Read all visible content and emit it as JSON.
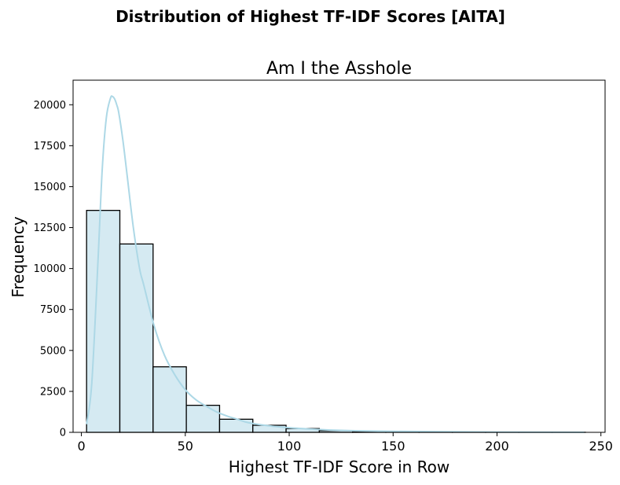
{
  "chart_data": {
    "type": "bar",
    "suptitle": "Distribution of Highest TF-IDF Scores [AITA]",
    "title": "Am I the Asshole",
    "xlabel": "Highest TF-IDF Score in Row",
    "ylabel": "Frequency",
    "xlim": [
      -4,
      252
    ],
    "ylim": [
      0,
      21500
    ],
    "xticks": [
      0,
      50,
      100,
      150,
      200,
      250
    ],
    "yticks": [
      0,
      2500,
      5000,
      7500,
      10000,
      12500,
      15000,
      17500,
      20000
    ],
    "bins": [
      {
        "x0": 2.5,
        "x1": 18.5,
        "count": 13550
      },
      {
        "x0": 18.5,
        "x1": 34.5,
        "count": 11500
      },
      {
        "x0": 34.5,
        "x1": 50.5,
        "count": 4000
      },
      {
        "x0": 50.5,
        "x1": 66.5,
        "count": 1650
      },
      {
        "x0": 66.5,
        "x1": 82.5,
        "count": 800
      },
      {
        "x0": 82.5,
        "x1": 98.5,
        "count": 430
      },
      {
        "x0": 98.5,
        "x1": 114.5,
        "count": 230
      },
      {
        "x0": 114.5,
        "x1": 130.5,
        "count": 100
      },
      {
        "x0": 130.5,
        "x1": 146.5,
        "count": 55
      },
      {
        "x0": 146.5,
        "x1": 162.5,
        "count": 30
      },
      {
        "x0": 162.5,
        "x1": 178.5,
        "count": 15
      },
      {
        "x0": 178.5,
        "x1": 194.5,
        "count": 10
      },
      {
        "x0": 194.5,
        "x1": 210.5,
        "count": 6
      },
      {
        "x0": 210.5,
        "x1": 226.5,
        "count": 4
      },
      {
        "x0": 226.5,
        "x1": 242.5,
        "count": 3
      }
    ],
    "kde": {
      "x": [
        2.5,
        5,
        8,
        10,
        12,
        14,
        15,
        16,
        17,
        18,
        20,
        22,
        25,
        28,
        30,
        35,
        40,
        45,
        50,
        55,
        60,
        65,
        70,
        75,
        80,
        90,
        100,
        110,
        120,
        130,
        140,
        150,
        170,
        200,
        242
      ],
      "y": [
        500,
        3000,
        10500,
        16000,
        19200,
        20400,
        20500,
        20350,
        20000,
        19500,
        17800,
        15700,
        12500,
        10000,
        9000,
        6500,
        4700,
        3500,
        2600,
        2000,
        1600,
        1250,
        1000,
        800,
        600,
        400,
        280,
        200,
        140,
        100,
        80,
        60,
        40,
        20,
        5
      ]
    },
    "colors": {
      "bar_fill": "#d5eaf2",
      "bar_edge": "#000000",
      "kde_line": "#add8e6"
    },
    "grid": false,
    "legend": false
  }
}
